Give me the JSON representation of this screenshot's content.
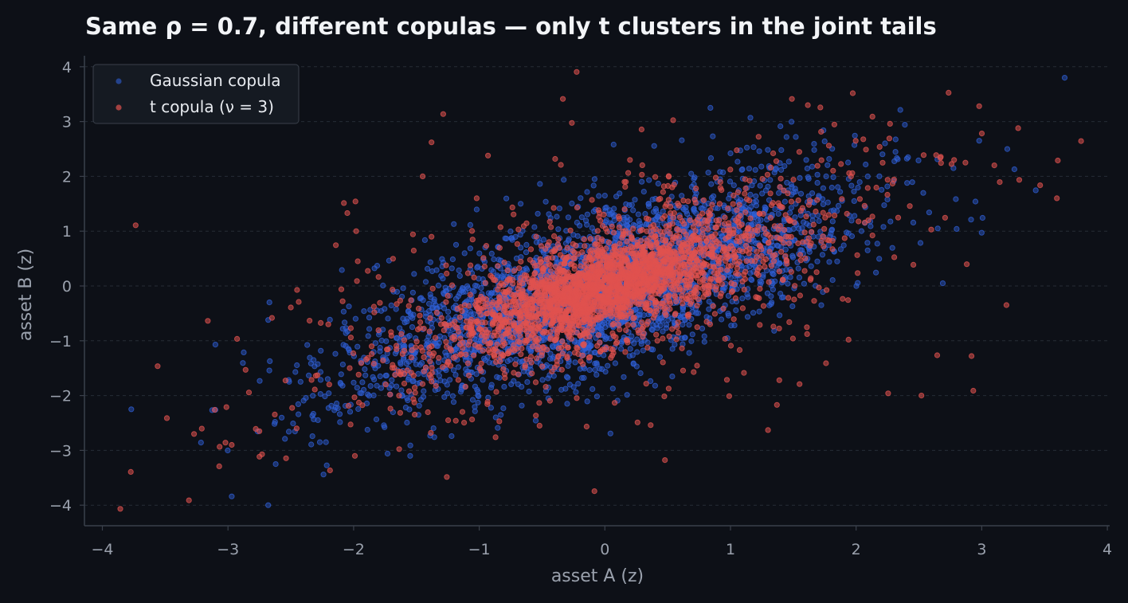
{
  "chart_data": {
    "type": "scatter",
    "title": "Same ρ = 0.7, different copulas — only t clusters in the joint tails",
    "xlabel": "asset A (z)",
    "ylabel": "asset B (z)",
    "xlim": [
      -4.15,
      4.0
    ],
    "ylim": [
      -4.4,
      4.2
    ],
    "xticks": [
      -4,
      -3,
      -2,
      -1,
      0,
      1,
      2,
      3,
      4
    ],
    "yticks": [
      -4,
      -3,
      -2,
      -1,
      0,
      1,
      2,
      3,
      4
    ],
    "xtick_labels": [
      "−4",
      "−3",
      "−2",
      "−1",
      "0",
      "1",
      "2",
      "3",
      "4"
    ],
    "ytick_labels": [
      "−4",
      "−3",
      "−2",
      "−1",
      "0",
      "1",
      "2",
      "3",
      "4"
    ],
    "grid": "horizontal dashed",
    "legend_position": "top-left",
    "series": [
      {
        "name": "Gaussian copula",
        "color": "#2f5fd6",
        "n_points": 3000,
        "correlation": 0.7,
        "sample_points": [
          [
            3.66,
            3.8
          ],
          [
            -3.77,
            -2.25
          ],
          [
            -3.1,
            -1.07
          ],
          [
            -3.1,
            -2.26
          ],
          [
            -2.97,
            -3.84
          ],
          [
            -2.68,
            -4.0
          ],
          [
            -2.67,
            -0.3
          ],
          [
            -2.68,
            -0.62
          ],
          [
            -2.62,
            -3.25
          ],
          [
            -2.24,
            -3.44
          ],
          [
            -1.55,
            -3.1
          ],
          [
            -1.73,
            -3.06
          ],
          [
            -1.22,
            -2.74
          ],
          [
            0.84,
            3.25
          ],
          [
            1.0,
            2.42
          ],
          [
            0.07,
            2.58
          ],
          [
            2.69,
            0.05
          ],
          [
            2.95,
            1.54
          ],
          [
            3.26,
            2.13
          ],
          [
            2.98,
            2.65
          ],
          [
            2.8,
            1.04
          ],
          [
            2.65,
            1.05
          ],
          [
            1.35,
            2.07
          ],
          [
            1.74,
            2.84
          ],
          [
            1.52,
            2.72
          ],
          [
            -0.45,
            -2.05
          ],
          [
            -0.3,
            -2.15
          ],
          [
            0.4,
            -1.82
          ],
          [
            -2.22,
            -2.85
          ],
          [
            -1.35,
            -1.9
          ]
        ]
      },
      {
        "name": "t copula (ν = 3)",
        "color": "#e0524f",
        "n_points": 3000,
        "correlation": 0.7,
        "df": 3,
        "sample_points": [
          [
            -3.27,
            -2.7
          ],
          [
            -3.07,
            -3.29
          ],
          [
            -2.97,
            -2.9
          ],
          [
            -2.86,
            -1.53
          ],
          [
            -2.75,
            -2.65
          ],
          [
            -2.05,
            1.33
          ],
          [
            -1.98,
            1.0
          ],
          [
            -1.99,
            -3.1
          ],
          [
            -1.38,
            2.62
          ],
          [
            -1.45,
            2.0
          ],
          [
            -1.02,
            1.6
          ],
          [
            -0.93,
            2.38
          ],
          [
            -0.84,
            -2.47
          ],
          [
            -0.87,
            -2.76
          ],
          [
            -0.52,
            -2.55
          ],
          [
            -0.35,
            2.21
          ],
          [
            0.26,
            -2.49
          ],
          [
            2.52,
            -2.0
          ],
          [
            1.37,
            -2.17
          ],
          [
            1.55,
            -1.79
          ],
          [
            1.76,
            -1.41
          ],
          [
            1.94,
            -0.98
          ],
          [
            2.13,
            3.09
          ],
          [
            2.27,
            2.96
          ],
          [
            2.98,
            3.28
          ],
          [
            3.29,
            2.88
          ],
          [
            3.1,
            2.2
          ],
          [
            2.87,
            2.25
          ],
          [
            2.78,
            2.3
          ],
          [
            0.99,
            -2.01
          ]
        ]
      }
    ]
  },
  "colors": {
    "background": "#0d1017",
    "axis": "#3a404b",
    "grid": "#262c36",
    "gaussian": "#2f5fd6",
    "t": "#e0524f"
  }
}
